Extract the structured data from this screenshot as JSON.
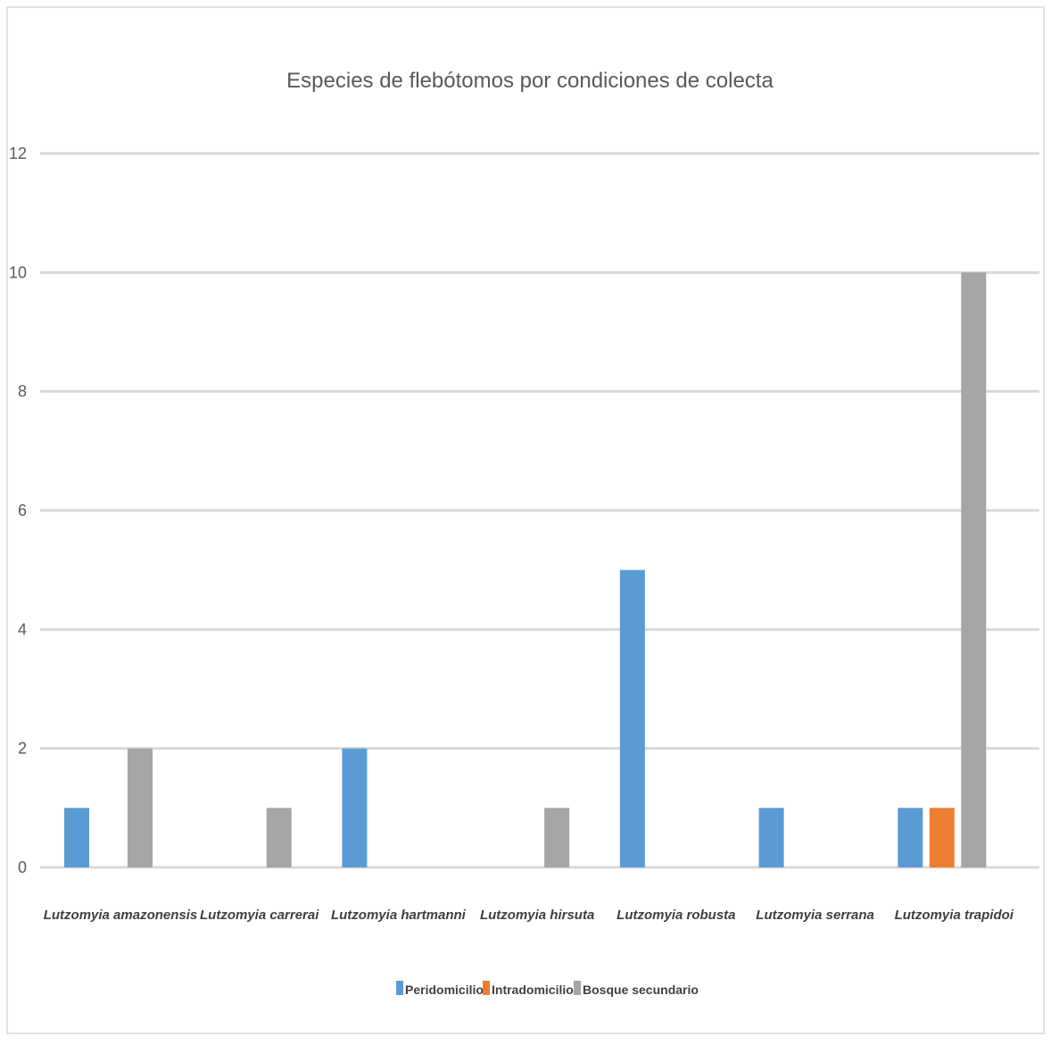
{
  "chart_data": {
    "type": "bar",
    "title": "Especies de flebótomos por condiciones de colecta",
    "xlabel": "",
    "ylabel": "",
    "ylim": [
      0,
      12
    ],
    "yticks": [
      "0",
      "2",
      "4",
      "6",
      "8",
      "10",
      "12"
    ],
    "grid": true,
    "legend_position": "bottom",
    "categories": [
      "Lutzomyia amazonensis",
      "Lutzomyia carrerai",
      "Lutzomyia hartmanni",
      "Lutzomyia hirsuta",
      "Lutzomyia robusta",
      "Lutzomyia serrana",
      "Lutzomyia trapidoi"
    ],
    "series": [
      {
        "name": "Peridomicilio",
        "color": "#5b9bd5",
        "values": [
          1,
          0,
          2,
          0,
          5,
          1,
          1
        ]
      },
      {
        "name": "Intradomicilio",
        "color": "#ed7d31",
        "values": [
          0,
          0,
          0,
          0,
          0,
          0,
          1
        ]
      },
      {
        "name": "Bosque secundario",
        "color": "#a5a5a5",
        "values": [
          2,
          1,
          0,
          1,
          0,
          0,
          10
        ]
      }
    ]
  }
}
